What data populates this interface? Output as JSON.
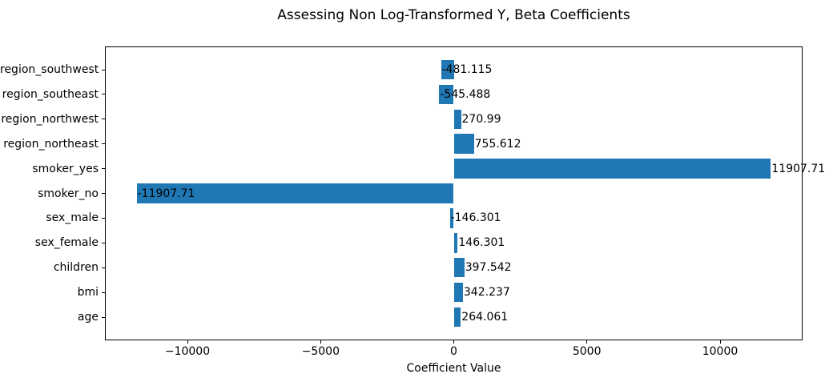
{
  "chart_data": {
    "type": "bar",
    "orientation": "horizontal",
    "title": "Assessing Non Log-Transformed Y, Beta Coefficients",
    "xlabel": "Coefficient Value",
    "ylabel": "",
    "categories": [
      "region_southwest",
      "region_southeast",
      "region_northwest",
      "region_northeast",
      "smoker_yes",
      "smoker_no",
      "sex_male",
      "sex_female",
      "children",
      "bmi",
      "age"
    ],
    "values": [
      -481.115,
      -545.488,
      270.99,
      755.612,
      11907.71,
      -11907.71,
      -146.301,
      146.301,
      397.542,
      342.237,
      264.061
    ],
    "bar_labels": [
      "-481.115",
      "-545.488",
      "270.99",
      "755.612",
      "11907.71",
      "-11907.71",
      "-146.301",
      "146.301",
      "397.542",
      "342.237",
      "264.061"
    ],
    "x_ticks": [
      -10000,
      -5000,
      0,
      5000,
      10000
    ],
    "x_tick_labels": [
      "−10000",
      "−5000",
      "0",
      "5000",
      "10000"
    ],
    "xlim": [
      -13098.5,
      13098.5
    ],
    "bar_color": "#1f77b4",
    "text_color": "#000000",
    "background_color": "#ffffff",
    "grid": false,
    "legend": null,
    "bar_label_position": "at value end, left-aligned"
  }
}
